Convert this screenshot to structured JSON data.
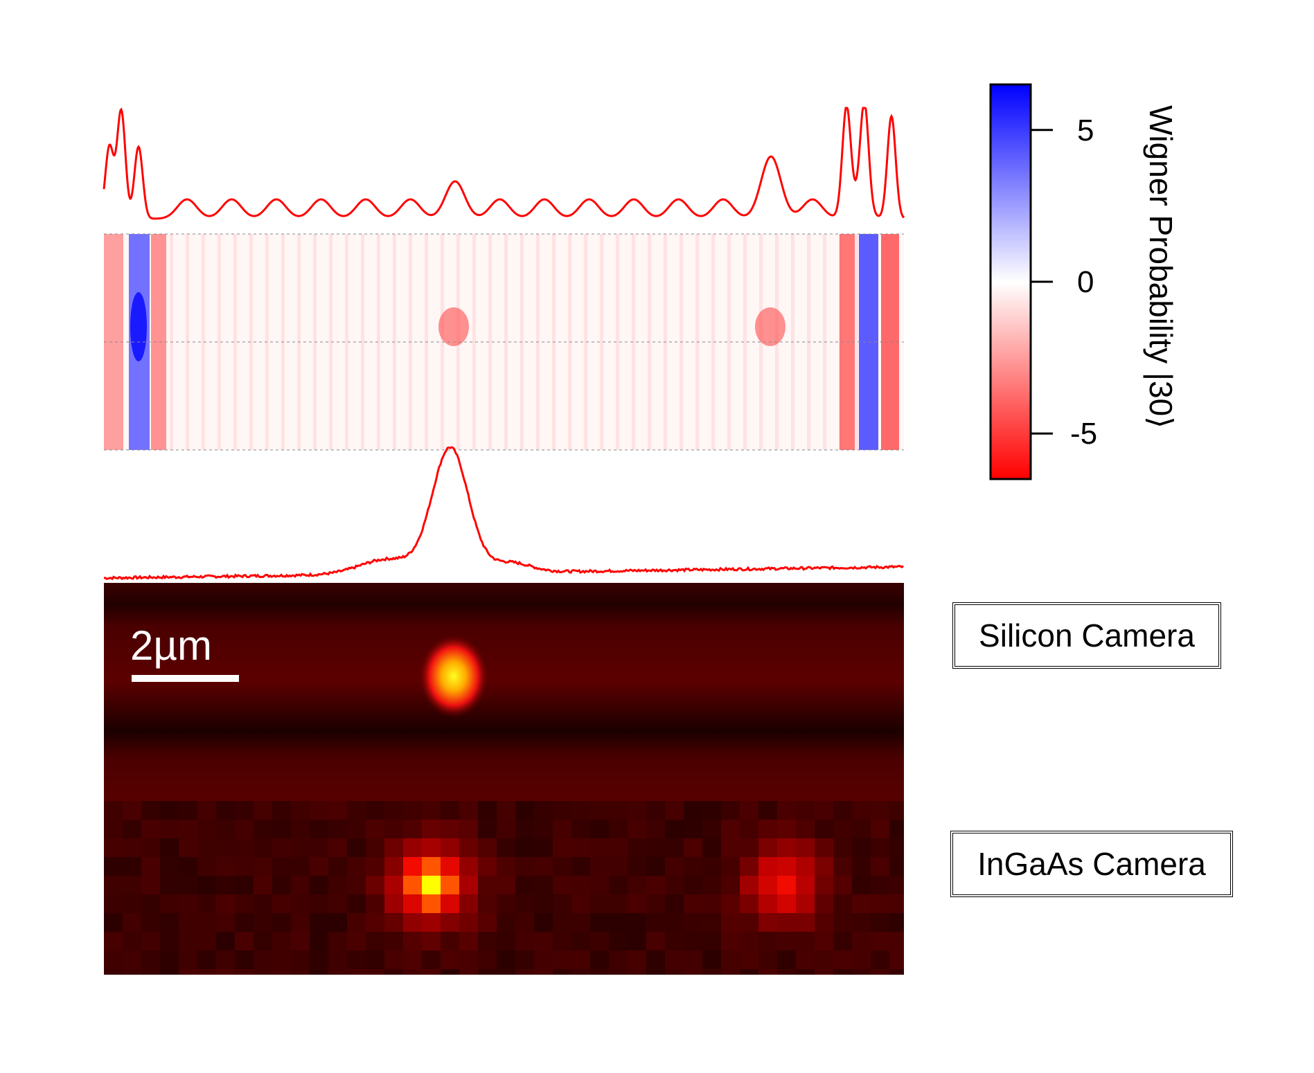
{
  "colorbar": {
    "title": "Wigner Probability |30⟩",
    "ticks": [
      {
        "label": "5",
        "value": 5
      },
      {
        "label": "0",
        "value": 0
      },
      {
        "label": "-5",
        "value": -5
      }
    ],
    "range": [
      -6.5,
      6.5
    ],
    "colors": {
      "negative": "#ff0000",
      "zero": "#ffffff",
      "positive": "#0000ff"
    }
  },
  "panels": {
    "silicon_label": "Silicon Camera",
    "ingaas_label": "InGaAs Camera",
    "scale_bar_label": "2µm"
  },
  "chart_data": {
    "type": "heatmap",
    "description_colors": {
      "line": "#ff0000"
    },
    "top_profile_peaks": {
      "left_cluster": [
        0.52,
        0.78,
        0.52
      ],
      "right_cluster": [
        0.74,
        0.74,
        0.74
      ],
      "periodic_small": 0.14,
      "center_peak": 0.27,
      "right_mid_peak": 0.32
    },
    "bottom_profile": {
      "peak_position": 0.433,
      "peak_height": 1.0,
      "baseline": 0.1
    },
    "ingaas_spots": [
      {
        "position": 0.41,
        "intensity": 1.0
      },
      {
        "position": 0.85,
        "intensity": 0.7
      }
    ]
  }
}
